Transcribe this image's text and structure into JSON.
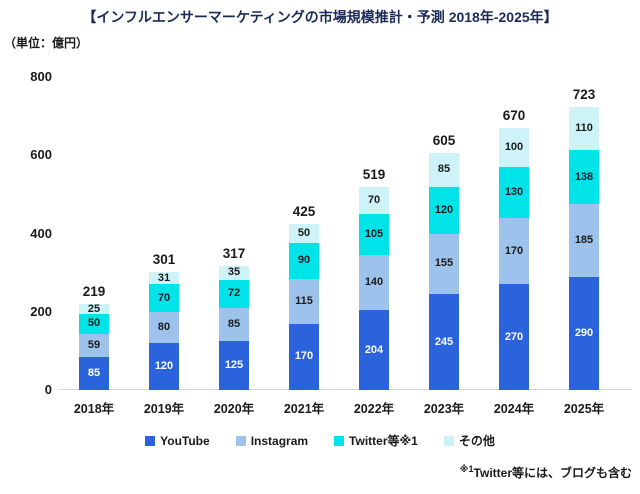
{
  "title": "【インフルエンサーマーケティングの市場規模推計・予測 2018年-2025年】",
  "unit_label": "（単位：億円）",
  "chart_data": {
    "type": "bar",
    "stacked": true,
    "title": "インフルエンサーマーケティングの市場規模推計・予測 2018年-2025年",
    "unit": "億円",
    "categories": [
      "2018年",
      "2019年",
      "2020年",
      "2021年",
      "2022年",
      "2023年",
      "2024年",
      "2025年"
    ],
    "series": [
      {
        "name": "YouTube",
        "color": "#2B63DC",
        "label_color": "#FFFFFF",
        "values": [
          85,
          120,
          125,
          170,
          204,
          245,
          270,
          290
        ]
      },
      {
        "name": "Instagram",
        "color": "#9DC3EC",
        "label_color": "#1A1A1A",
        "values": [
          59,
          80,
          85,
          115,
          140,
          155,
          170,
          185
        ]
      },
      {
        "name": "Twitter等※1",
        "color": "#00E3E9",
        "label_color": "#1A1A1A",
        "values": [
          50,
          70,
          72,
          90,
          105,
          120,
          130,
          138
        ]
      },
      {
        "name": "その他",
        "color": "#CDF3F8",
        "label_color": "#1A1A1A",
        "values": [
          25,
          31,
          35,
          50,
          70,
          85,
          100,
          110
        ]
      }
    ],
    "totals": [
      219,
      301,
      317,
      425,
      519,
      605,
      670,
      723
    ],
    "ylim": [
      0,
      800
    ],
    "y_ticks": [
      0,
      200,
      400,
      600,
      800
    ],
    "grid": false,
    "legend_position": "bottom"
  },
  "footnote": {
    "marker": "※1",
    "text": "Twitter等には、ブログも含む"
  },
  "colors": {
    "title": "#1B2A59",
    "text": "#1A1A1A",
    "axis_line": "#D9D9D9",
    "background": "#FFFFFF",
    "youtube": "#2B63DC",
    "instagram": "#9DC3EC",
    "twitter": "#00E3E9",
    "other": "#CDF3F8"
  }
}
